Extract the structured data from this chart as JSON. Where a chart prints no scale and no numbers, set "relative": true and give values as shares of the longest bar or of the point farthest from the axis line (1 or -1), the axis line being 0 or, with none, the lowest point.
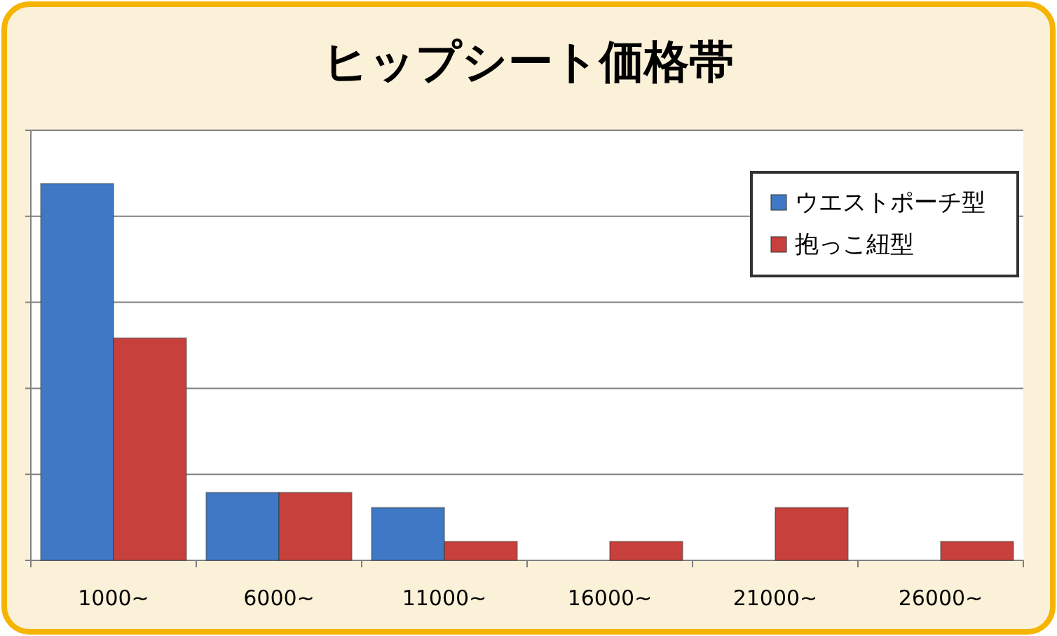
{
  "chart_data": {
    "type": "bar",
    "title": "ヒップシート価格帯",
    "relative": true,
    "grid": "y",
    "legend": "top right",
    "categories": [
      "1000~",
      "6000~",
      "11000~",
      "16000~",
      "21000~",
      "26000~"
    ],
    "series": [
      {
        "name": "ウエストポーチ型",
        "color": "#3f78c4",
        "values": [
          1,
          0.18,
          0.14,
          0,
          0,
          0
        ]
      },
      {
        "name": "抱っこ紐型",
        "color": "#c8403c",
        "values": [
          0.59,
          0.18,
          0.05,
          0.05,
          0.14,
          0.05
        ]
      }
    ]
  }
}
